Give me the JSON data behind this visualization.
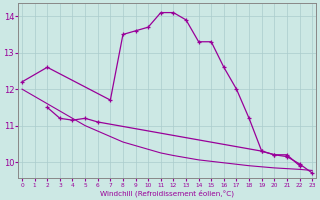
{
  "background_color": "#cce8e4",
  "line_color": "#990099",
  "grid_color": "#aacccc",
  "xlabel": "Windchill (Refroidissement éolien,°C)",
  "curve1_x": [
    0,
    2,
    7,
    8,
    9,
    10,
    11,
    12,
    13,
    14,
    15,
    16,
    17,
    18,
    19,
    20,
    21,
    22
  ],
  "curve1_y": [
    12.2,
    12.6,
    11.7,
    13.5,
    13.6,
    13.7,
    14.1,
    14.1,
    13.9,
    13.3,
    13.3,
    12.6,
    12.0,
    11.2,
    10.3,
    10.2,
    10.2,
    9.9
  ],
  "curve2_x": [
    2,
    3,
    4,
    5,
    6,
    19,
    20,
    21,
    22,
    23
  ],
  "curve2_y": [
    11.5,
    11.2,
    11.15,
    11.2,
    11.1,
    10.3,
    10.2,
    10.15,
    9.95,
    9.7
  ],
  "curve3_x": [
    0,
    2,
    4,
    5,
    6,
    7,
    8,
    9,
    10,
    11,
    12,
    13,
    14,
    15,
    16,
    17,
    18,
    19,
    20,
    21,
    22,
    23
  ],
  "curve3_y": [
    12.0,
    11.6,
    11.2,
    11.0,
    10.85,
    10.7,
    10.55,
    10.45,
    10.35,
    10.25,
    10.18,
    10.12,
    10.06,
    10.02,
    9.98,
    9.94,
    9.9,
    9.87,
    9.84,
    9.82,
    9.8,
    9.77
  ],
  "ylim": [
    9.55,
    14.35
  ],
  "yticks": [
    10,
    11,
    12,
    13,
    14
  ],
  "xticks": [
    0,
    1,
    2,
    3,
    4,
    5,
    6,
    7,
    8,
    9,
    10,
    11,
    12,
    13,
    14,
    15,
    16,
    17,
    18,
    19,
    20,
    21,
    22,
    23
  ],
  "xlim": [
    -0.3,
    23.3
  ]
}
